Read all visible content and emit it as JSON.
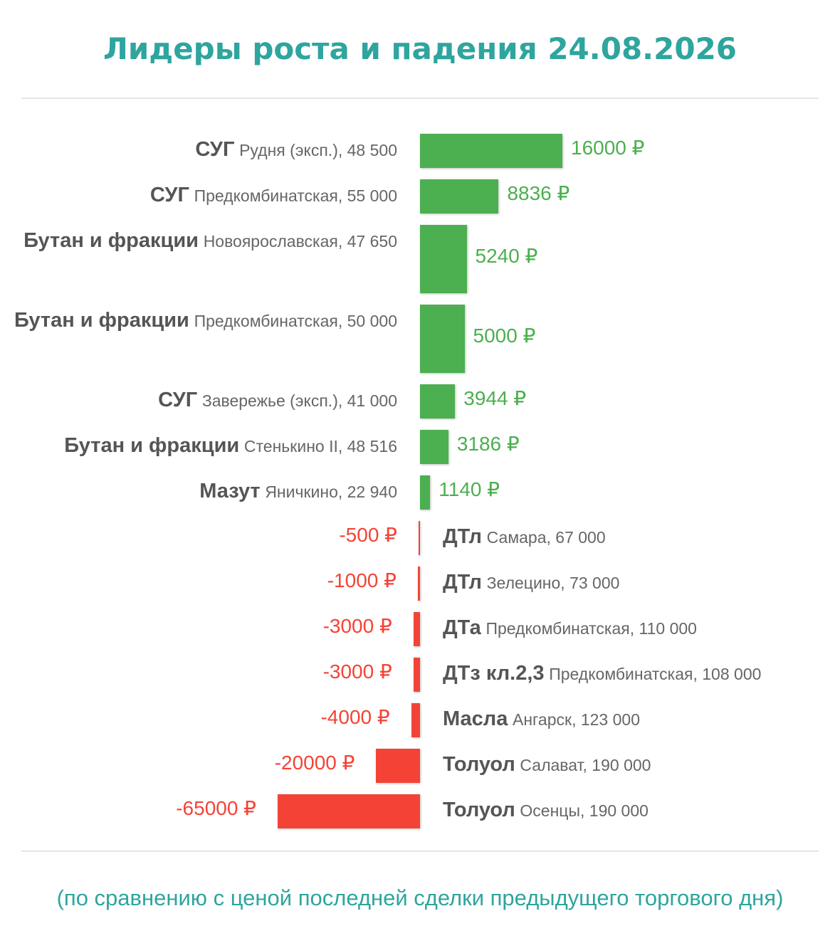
{
  "title": "Лидеры роста и падения 24.08.2026",
  "footnote": "(по сравнению с ценой последней сделки предыдущего торгового дня)",
  "colors": {
    "accent": "#2ea59e",
    "positive": "#4caf50",
    "negative": "#f44336"
  },
  "chart_data": {
    "type": "bar",
    "orientation": "horizontal",
    "unit": "₽",
    "items": [
      {
        "product": "СУГ",
        "location": "Рудня (эксп.), 48 500",
        "value": 16000,
        "value_label": "16000 ₽"
      },
      {
        "product": "СУГ",
        "location": "Предкомбинатская, 55 000",
        "value": 8836,
        "value_label": "8836 ₽"
      },
      {
        "product": "Бутан и фракции",
        "location": "Новоярославская, 47 650",
        "value": 5240,
        "value_label": "5240 ₽"
      },
      {
        "product": "Бутан и фракции",
        "location": "Предкомбинатская, 50 000",
        "value": 5000,
        "value_label": "5000 ₽"
      },
      {
        "product": "СУГ",
        "location": "Завережье (эксп.), 41 000",
        "value": 3944,
        "value_label": "3944 ₽"
      },
      {
        "product": "Бутан и фракции",
        "location": "Стенькино II, 48 516",
        "value": 3186,
        "value_label": "3186 ₽"
      },
      {
        "product": "Мазут",
        "location": "Яничкино, 22 940",
        "value": 1140,
        "value_label": "1140 ₽"
      },
      {
        "product": "ДТл",
        "location": "Самара, 67 000",
        "value": -500,
        "value_label": "-500 ₽"
      },
      {
        "product": "ДТл",
        "location": "Зелецино, 73 000",
        "value": -1000,
        "value_label": "-1000 ₽"
      },
      {
        "product": "ДТа",
        "location": "Предкомбинатская, 110 000",
        "value": -3000,
        "value_label": "-3000 ₽"
      },
      {
        "product": "ДТз кл.2,3",
        "location": "Предкомбинатская, 108 000",
        "value": -3000,
        "value_label": "-3000 ₽"
      },
      {
        "product": "Масла",
        "location": "Ангарск, 123 000",
        "value": -4000,
        "value_label": "-4000 ₽"
      },
      {
        "product": "Толуол",
        "location": "Салават, 190 000",
        "value": -20000,
        "value_label": "-20000 ₽"
      },
      {
        "product": "Толуол",
        "location": "Осенцы, 190 000",
        "value": -65000,
        "value_label": "-65000 ₽"
      }
    ]
  }
}
